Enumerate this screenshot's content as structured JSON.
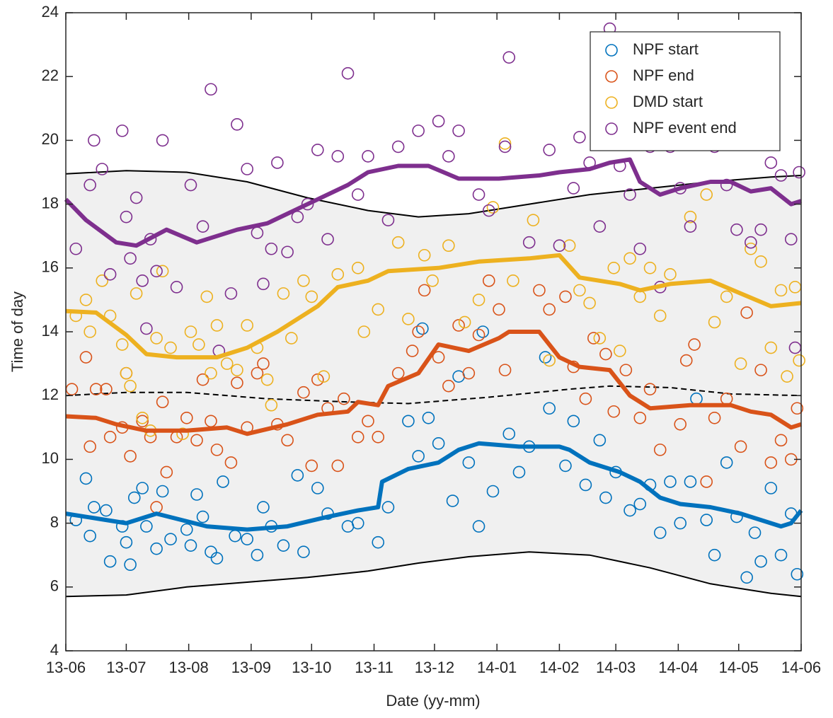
{
  "chart_data": {
    "type": "scatter",
    "xlabel": "Date (yy-mm)",
    "ylabel": "Time of day",
    "xlim": [
      0,
      365
    ],
    "ylim": [
      4,
      24
    ],
    "xticks": [
      {
        "value": 0,
        "label": "13-06"
      },
      {
        "value": 30,
        "label": "13-07"
      },
      {
        "value": 61,
        "label": "13-08"
      },
      {
        "value": 92,
        "label": "13-09"
      },
      {
        "value": 122,
        "label": "13-10"
      },
      {
        "value": 153,
        "label": "13-11"
      },
      {
        "value": 183,
        "label": "13-12"
      },
      {
        "value": 214,
        "label": "14-01"
      },
      {
        "value": 245,
        "label": "14-02"
      },
      {
        "value": 273,
        "label": "14-03"
      },
      {
        "value": 304,
        "label": "14-04"
      },
      {
        "value": 334,
        "label": "14-05"
      },
      {
        "value": 365,
        "label": "14-06"
      }
    ],
    "yticks": [
      4,
      6,
      8,
      10,
      12,
      14,
      16,
      18,
      20,
      22,
      24
    ],
    "legend": "upper right",
    "band": {
      "color": "#f0f0f0",
      "x": [
        0,
        30,
        60,
        90,
        120,
        150,
        175,
        200,
        230,
        260,
        290,
        320,
        350,
        365
      ],
      "upper": [
        18.95,
        19.05,
        19.0,
        18.7,
        18.2,
        17.8,
        17.6,
        17.7,
        18.0,
        18.3,
        18.5,
        18.7,
        18.85,
        18.9
      ],
      "lower": [
        5.7,
        5.75,
        6.0,
        6.15,
        6.3,
        6.5,
        6.75,
        6.95,
        7.1,
        7.0,
        6.6,
        6.1,
        5.8,
        5.7
      ]
    },
    "center_line": {
      "x": [
        0,
        30,
        60,
        100,
        140,
        170,
        210,
        250,
        270,
        300,
        330,
        365
      ],
      "values": [
        12.0,
        12.1,
        12.1,
        11.9,
        11.8,
        11.75,
        11.95,
        12.2,
        12.3,
        12.25,
        12.05,
        12.0
      ]
    },
    "series": [
      {
        "name": "NPF start",
        "color": "#0072BD",
        "x": [
          5,
          10,
          12,
          14,
          20,
          22,
          28,
          30,
          32,
          34,
          38,
          40,
          45,
          48,
          52,
          60,
          62,
          65,
          68,
          72,
          75,
          78,
          84,
          90,
          95,
          98,
          102,
          108,
          115,
          118,
          125,
          130,
          140,
          145,
          155,
          160,
          170,
          175,
          177,
          180,
          185,
          192,
          195,
          200,
          205,
          207,
          212,
          220,
          225,
          230,
          238,
          240,
          248,
          252,
          258,
          265,
          268,
          273,
          280,
          285,
          290,
          295,
          300,
          305,
          310,
          313,
          318,
          322,
          328,
          333,
          338,
          342,
          345,
          350,
          355,
          360,
          363
        ],
        "values": [
          8.1,
          9.4,
          7.6,
          8.5,
          8.4,
          6.8,
          7.9,
          7.4,
          6.7,
          8.8,
          9.1,
          7.9,
          7.2,
          9.0,
          7.5,
          7.8,
          7.3,
          8.9,
          8.2,
          7.1,
          6.9,
          9.3,
          7.6,
          7.5,
          7.0,
          8.5,
          7.9,
          7.3,
          9.5,
          7.1,
          9.1,
          8.3,
          7.9,
          8.0,
          7.4,
          8.5,
          11.2,
          10.1,
          14.1,
          11.3,
          10.5,
          8.7,
          12.6,
          9.9,
          7.9,
          14.0,
          9.0,
          10.8,
          9.6,
          10.4,
          13.2,
          11.6,
          9.8,
          11.2,
          9.2,
          10.6,
          8.8,
          9.6,
          8.4,
          8.6,
          9.2,
          7.7,
          9.3,
          8.0,
          9.3,
          11.9,
          8.1,
          7.0,
          9.9,
          8.2,
          6.3,
          7.7,
          6.8,
          9.1,
          7.0,
          8.3,
          6.4
        ]
      },
      {
        "name": "NPF end",
        "color": "#D95319",
        "x": [
          3,
          10,
          12,
          15,
          20,
          22,
          28,
          30,
          32,
          38,
          42,
          45,
          48,
          50,
          55,
          60,
          65,
          68,
          72,
          75,
          82,
          85,
          90,
          95,
          98,
          105,
          110,
          118,
          122,
          125,
          130,
          135,
          138,
          145,
          150,
          155,
          165,
          172,
          175,
          178,
          185,
          190,
          195,
          200,
          205,
          210,
          215,
          218,
          235,
          240,
          248,
          252,
          258,
          262,
          268,
          272,
          278,
          285,
          290,
          295,
          305,
          308,
          312,
          318,
          322,
          328,
          335,
          338,
          345,
          350,
          355,
          360,
          363
        ],
        "values": [
          12.2,
          13.2,
          10.4,
          12.2,
          12.2,
          10.7,
          11.0,
          12.7,
          10.1,
          11.2,
          10.7,
          8.5,
          11.8,
          9.6,
          10.7,
          11.3,
          10.6,
          12.5,
          11.2,
          10.3,
          9.9,
          12.4,
          11.0,
          12.7,
          13.0,
          11.1,
          10.6,
          12.1,
          9.8,
          12.5,
          11.6,
          9.8,
          11.9,
          10.7,
          11.2,
          10.7,
          12.7,
          13.4,
          14.0,
          15.3,
          13.2,
          12.3,
          14.2,
          12.7,
          13.9,
          15.6,
          14.7,
          12.8,
          15.3,
          14.7,
          15.1,
          12.9,
          11.9,
          13.8,
          13.3,
          11.5,
          12.8,
          11.3,
          12.2,
          10.3,
          11.1,
          13.1,
          13.6,
          9.3,
          11.3,
          11.9,
          10.4,
          14.6,
          12.8,
          9.9,
          10.6,
          10.0,
          11.6
        ]
      },
      {
        "name": "DMD start",
        "color": "#EDB120",
        "x": [
          5,
          10,
          12,
          18,
          22,
          28,
          30,
          32,
          35,
          38,
          42,
          45,
          48,
          52,
          58,
          62,
          66,
          70,
          72,
          75,
          80,
          85,
          90,
          95,
          100,
          102,
          108,
          112,
          118,
          122,
          128,
          135,
          145,
          148,
          155,
          165,
          170,
          178,
          182,
          190,
          198,
          205,
          212,
          218,
          222,
          232,
          240,
          250,
          255,
          260,
          265,
          272,
          275,
          280,
          285,
          290,
          295,
          300,
          310,
          318,
          322,
          328,
          335,
          340,
          345,
          350,
          355,
          358,
          362,
          364
        ],
        "values": [
          14.5,
          15.0,
          14.0,
          15.6,
          14.5,
          13.6,
          12.7,
          12.3,
          15.2,
          11.3,
          10.9,
          13.8,
          15.9,
          13.5,
          10.8,
          14.0,
          13.6,
          15.1,
          12.7,
          14.2,
          13.0,
          12.8,
          14.2,
          13.5,
          12.5,
          11.7,
          15.2,
          13.8,
          15.6,
          15.1,
          12.6,
          15.8,
          16.0,
          14.0,
          14.7,
          16.8,
          14.4,
          16.4,
          15.6,
          16.7,
          14.3,
          15.0,
          17.9,
          19.9,
          15.6,
          17.5,
          13.1,
          16.7,
          15.3,
          14.9,
          13.8,
          16.0,
          13.4,
          16.3,
          15.1,
          16.0,
          14.5,
          15.8,
          17.6,
          18.3,
          14.3,
          15.1,
          13.0,
          16.6,
          16.2,
          13.5,
          15.3,
          12.6,
          15.4,
          13.1
        ]
      },
      {
        "name": "NPF event end",
        "color": "#7E2F8E",
        "x": [
          5,
          12,
          14,
          18,
          22,
          28,
          30,
          32,
          35,
          38,
          40,
          42,
          45,
          48,
          55,
          62,
          68,
          72,
          76,
          82,
          85,
          90,
          95,
          98,
          102,
          105,
          110,
          115,
          120,
          125,
          130,
          135,
          140,
          145,
          150,
          160,
          165,
          175,
          185,
          190,
          195,
          205,
          210,
          218,
          220,
          230,
          240,
          245,
          252,
          255,
          260,
          265,
          270,
          275,
          280,
          285,
          290,
          295,
          300,
          305,
          310,
          318,
          322,
          328,
          333,
          340,
          345,
          350,
          355,
          360,
          362,
          364
        ],
        "values": [
          16.6,
          18.6,
          20.0,
          19.1,
          15.8,
          20.3,
          17.6,
          16.3,
          18.2,
          15.6,
          14.1,
          16.9,
          15.9,
          20.0,
          15.4,
          18.6,
          17.3,
          21.6,
          13.4,
          15.2,
          20.5,
          19.1,
          17.1,
          15.5,
          16.6,
          19.3,
          16.5,
          17.6,
          18.0,
          19.7,
          16.9,
          19.5,
          22.1,
          18.3,
          19.5,
          17.5,
          19.8,
          20.3,
          20.6,
          19.5,
          20.3,
          18.3,
          17.8,
          19.8,
          22.6,
          16.8,
          19.7,
          16.7,
          18.5,
          20.1,
          19.3,
          17.3,
          23.5,
          19.2,
          18.3,
          16.6,
          19.8,
          15.4,
          19.8,
          18.5,
          17.3,
          19.9,
          19.8,
          18.6,
          17.2,
          16.8,
          17.2,
          19.3,
          18.9,
          16.9,
          13.5,
          19.0
        ]
      }
    ],
    "trend_lines": [
      {
        "color": "#0072BD",
        "x": [
          0,
          30,
          45,
          70,
          90,
          110,
          130,
          145,
          155,
          157,
          170,
          185,
          195,
          205,
          225,
          245,
          250,
          260,
          275,
          285,
          295,
          305,
          320,
          335,
          345,
          355,
          360,
          365
        ],
        "values": [
          8.3,
          8.0,
          8.3,
          7.9,
          7.8,
          7.9,
          8.2,
          8.4,
          8.5,
          9.3,
          9.7,
          9.9,
          10.3,
          10.5,
          10.4,
          10.4,
          10.3,
          9.9,
          9.6,
          9.3,
          8.8,
          8.6,
          8.5,
          8.3,
          8.1,
          7.9,
          8.0,
          8.4
        ]
      },
      {
        "color": "#D95319",
        "x": [
          0,
          15,
          25,
          40,
          60,
          80,
          90,
          110,
          125,
          140,
          145,
          155,
          160,
          175,
          185,
          200,
          215,
          220,
          235,
          245,
          255,
          270,
          280,
          290,
          310,
          330,
          340,
          350,
          360,
          365
        ],
        "values": [
          11.35,
          11.3,
          11.1,
          10.9,
          10.9,
          11.0,
          10.8,
          11.1,
          11.4,
          11.5,
          11.8,
          11.7,
          12.3,
          12.7,
          13.6,
          13.4,
          13.8,
          14.0,
          14.0,
          13.2,
          12.9,
          12.8,
          12.0,
          11.6,
          11.7,
          11.7,
          11.5,
          11.4,
          11.0,
          11.1
        ]
      },
      {
        "color": "#EDB120",
        "x": [
          0,
          15,
          30,
          40,
          55,
          75,
          90,
          105,
          125,
          135,
          150,
          160,
          185,
          205,
          230,
          245,
          255,
          275,
          285,
          300,
          320,
          335,
          350,
          365
        ],
        "values": [
          14.65,
          14.6,
          13.9,
          13.3,
          13.2,
          13.2,
          13.5,
          14.0,
          14.8,
          15.4,
          15.6,
          15.9,
          16.0,
          16.2,
          16.3,
          16.4,
          15.7,
          15.5,
          15.3,
          15.5,
          15.6,
          15.2,
          14.8,
          14.9
        ]
      },
      {
        "color": "#7E2F8E",
        "x": [
          0,
          10,
          25,
          35,
          50,
          65,
          75,
          85,
          100,
          120,
          140,
          150,
          165,
          180,
          195,
          215,
          235,
          245,
          260,
          270,
          280,
          285,
          295,
          305,
          320,
          330,
          340,
          350,
          360,
          365
        ],
        "values": [
          18.15,
          17.5,
          16.8,
          16.7,
          17.2,
          16.8,
          17.0,
          17.2,
          17.4,
          18.0,
          18.6,
          19.0,
          19.2,
          19.2,
          18.8,
          18.8,
          18.9,
          19.0,
          19.1,
          19.3,
          19.4,
          18.7,
          18.3,
          18.5,
          18.7,
          18.7,
          18.4,
          18.5,
          18.0,
          18.1
        ]
      }
    ]
  }
}
